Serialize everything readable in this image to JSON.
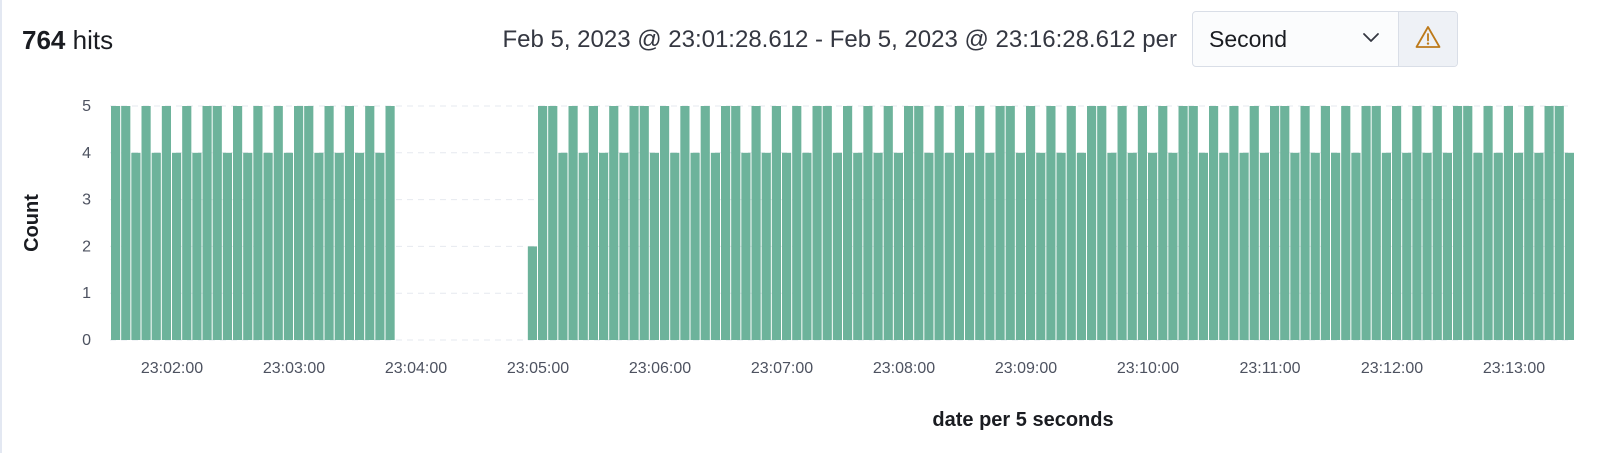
{
  "header": {
    "hits_count": "764",
    "hits_label": "hits",
    "time_range": "Feb 5, 2023 @ 23:01:28.612 - Feb 5, 2023 @ 23:16:28.612 per",
    "interval_value": "Second",
    "interval_icon": "chevron-down-icon",
    "warning_icon": "warning-icon",
    "warning_color": "#bd7a1a"
  },
  "chart_data": {
    "type": "bar",
    "title": "",
    "xlabel": "date per 5 seconds",
    "ylabel": "Count",
    "bar_color": "#6db39b",
    "ylim": [
      0,
      5
    ],
    "yticks": [
      0,
      1,
      2,
      3,
      4,
      5
    ],
    "xlim": [
      "23:01:30",
      "23:13:30"
    ],
    "xticks": [
      "23:02:00",
      "23:03:00",
      "23:04:00",
      "23:05:00",
      "23:06:00",
      "23:07:00",
      "23:08:00",
      "23:09:00",
      "23:10:00",
      "23:11:00",
      "23:12:00",
      "23:13:00"
    ],
    "bin_seconds": 5,
    "grid": true,
    "series": [
      {
        "values": [
          5,
          5,
          4,
          5,
          4,
          5,
          4,
          5,
          4,
          5,
          5,
          4,
          5,
          4,
          5,
          4,
          5,
          4,
          5,
          5,
          4,
          5,
          4,
          5,
          4,
          5,
          4,
          5,
          0,
          0,
          0,
          0,
          0,
          0,
          0,
          0,
          0,
          0,
          0,
          0,
          0,
          2,
          5,
          5,
          4,
          5,
          4,
          5,
          4,
          5,
          4,
          5,
          5,
          4,
          5,
          4,
          5,
          4,
          5,
          4,
          5,
          5,
          4,
          5,
          4,
          5,
          4,
          5,
          4,
          5,
          5,
          4,
          5,
          4,
          5,
          4,
          5,
          4,
          5,
          5,
          4,
          5,
          4,
          5,
          4,
          5,
          4,
          5,
          5,
          4,
          5,
          4,
          5,
          4,
          5,
          4,
          5,
          5,
          4,
          5,
          4,
          5,
          4,
          5,
          4,
          5,
          5,
          4,
          5,
          4,
          5,
          4,
          5,
          4,
          5,
          5,
          4,
          5,
          4,
          5,
          4,
          5,
          4,
          5,
          5,
          4,
          5,
          4,
          5,
          4,
          5,
          4,
          5,
          5,
          4,
          5,
          4,
          5,
          4,
          5,
          4,
          5,
          5,
          4
        ]
      }
    ]
  }
}
